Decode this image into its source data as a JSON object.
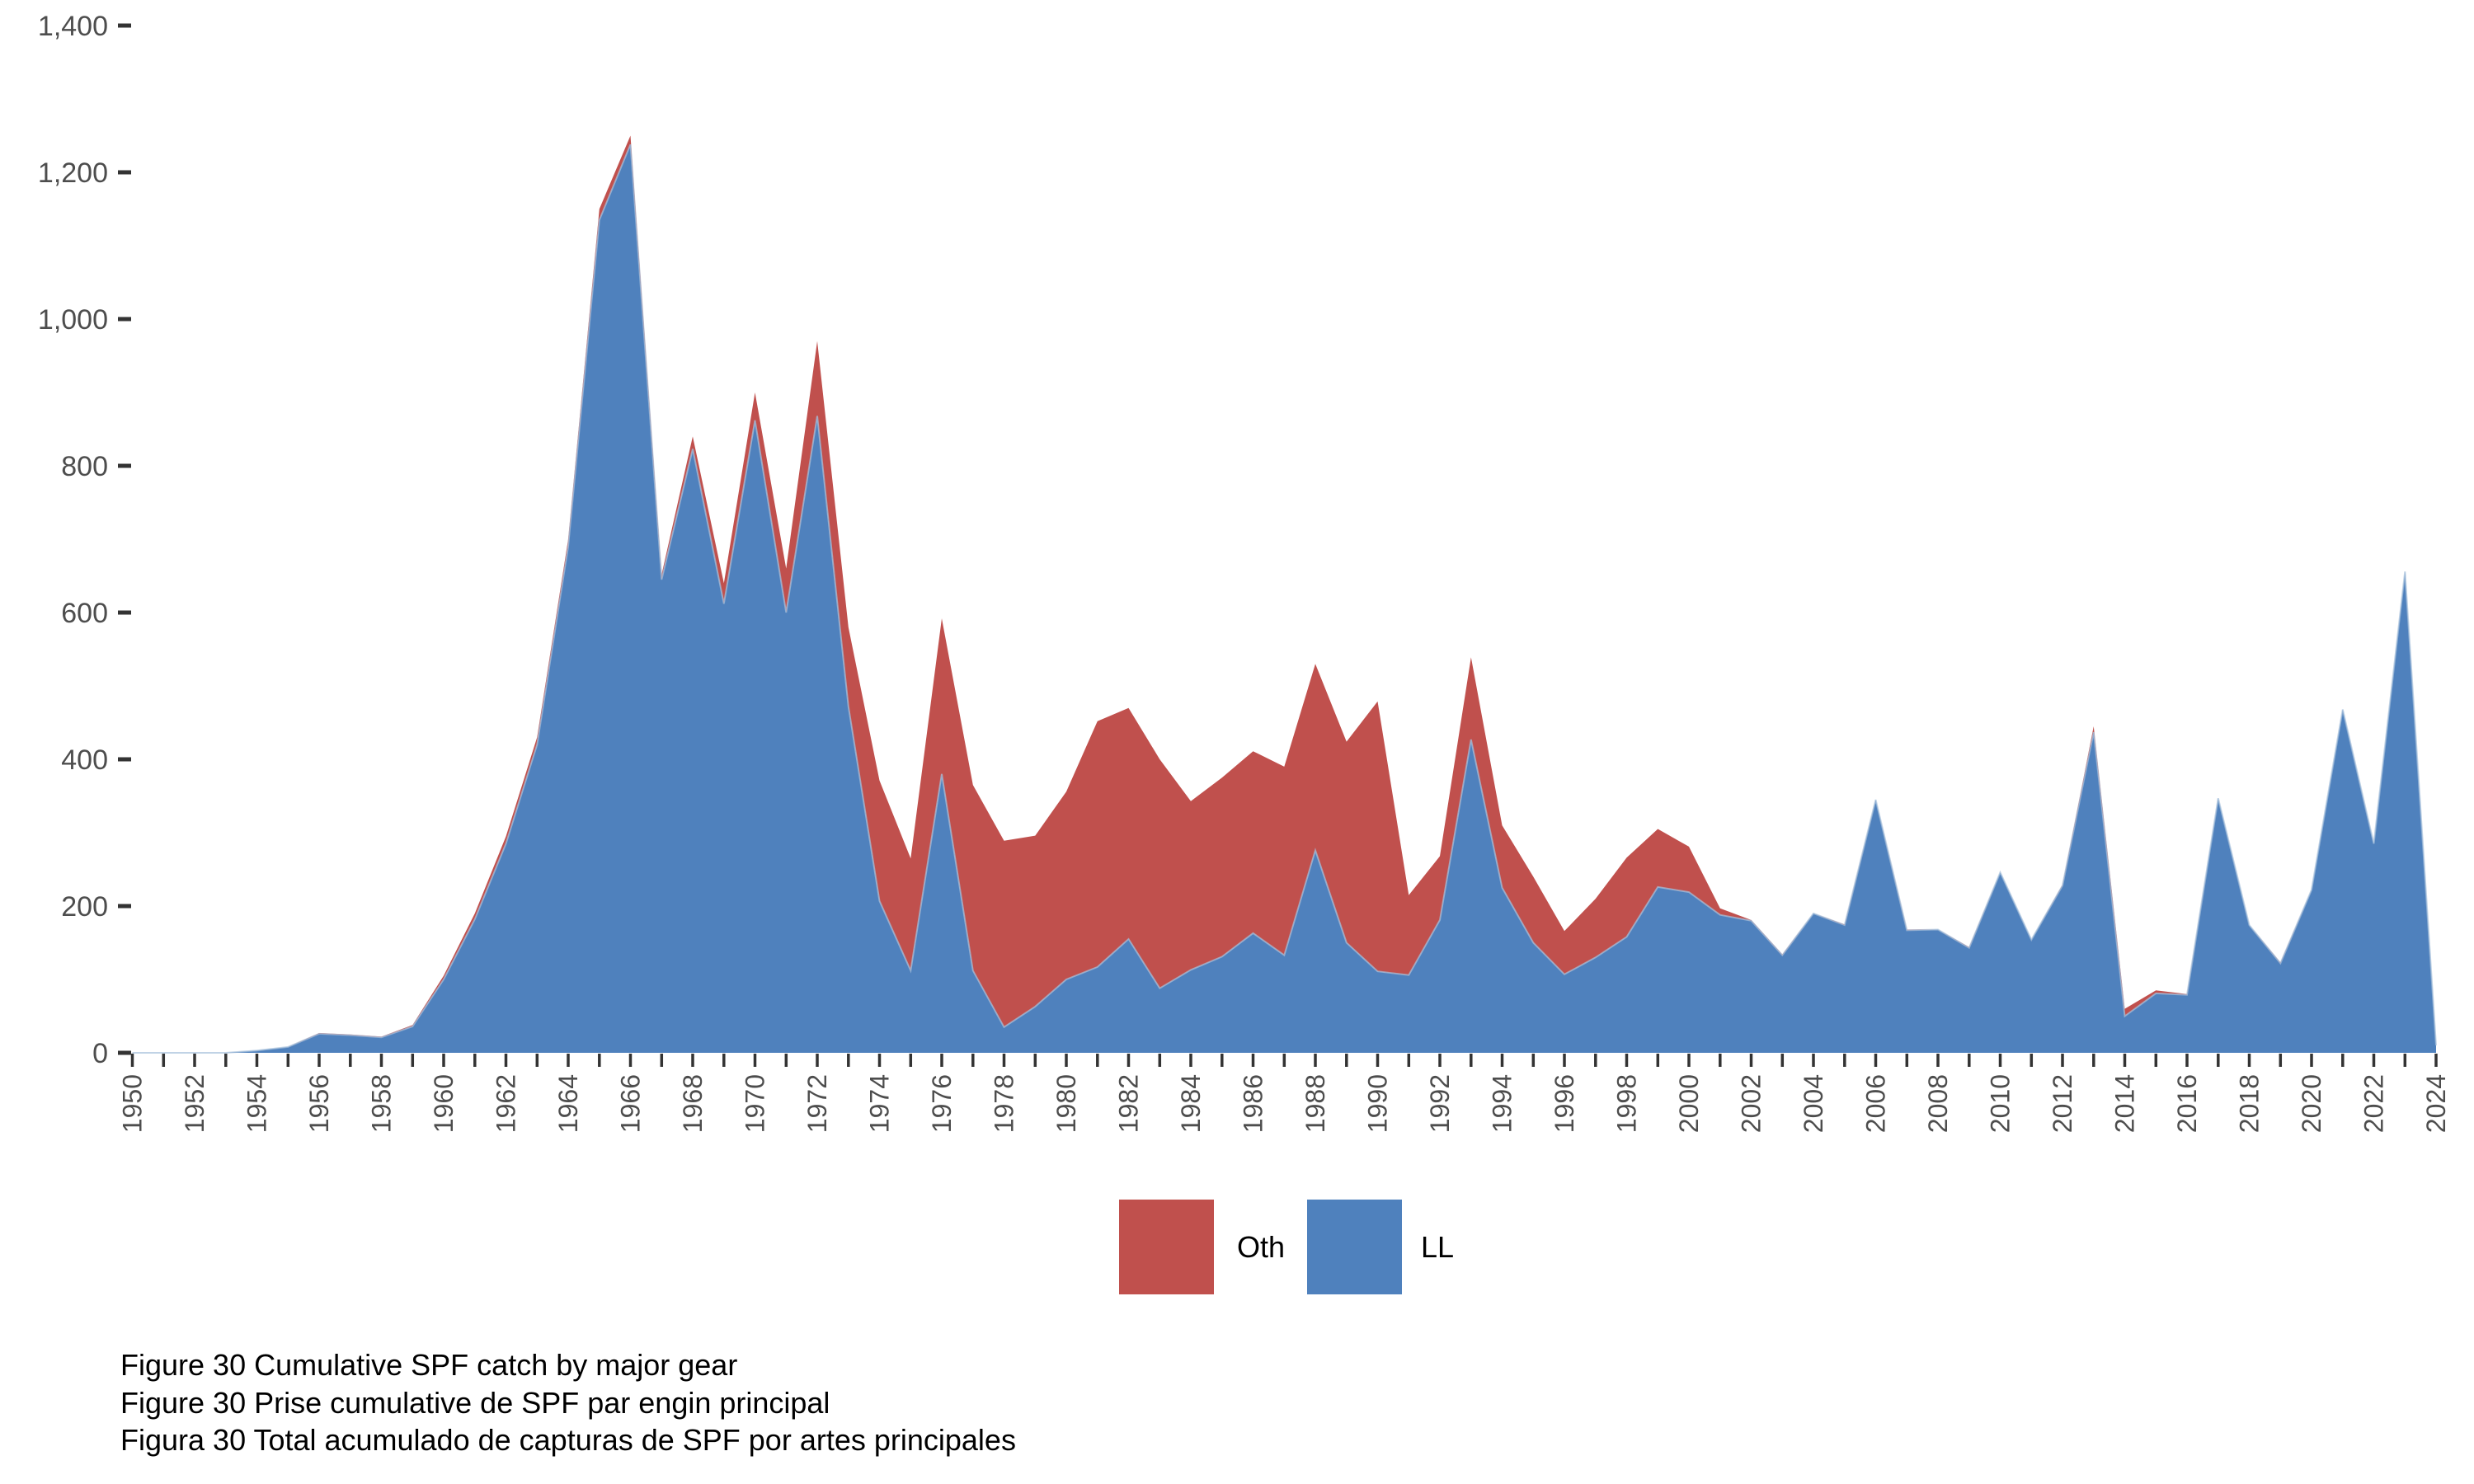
{
  "figure": {
    "captions": [
      "Figure 30 Cumulative SPF catch by major gear",
      "Figure 30 Prise cumulative de SPF par engin principal",
      "Figura 30 Total acumulado de capturas de SPF por artes principales"
    ]
  },
  "legend": {
    "items": [
      {
        "label": "Oth",
        "color": "#c0504d"
      },
      {
        "label": "LL",
        "color": "#4f81bd"
      }
    ]
  },
  "chart_data": {
    "type": "area",
    "stacked": true,
    "stack_order": [
      "LL",
      "Oth"
    ],
    "title": "",
    "xlabel": "",
    "ylabel": "",
    "x_range": [
      1950,
      2024
    ],
    "y_range": [
      0,
      1400
    ],
    "grid": false,
    "legend_position": "bottom",
    "x": [
      1950,
      1951,
      1952,
      1953,
      1954,
      1955,
      1956,
      1957,
      1958,
      1959,
      1960,
      1961,
      1962,
      1963,
      1964,
      1965,
      1966,
      1967,
      1968,
      1969,
      1970,
      1971,
      1972,
      1973,
      1974,
      1975,
      1976,
      1977,
      1978,
      1979,
      1980,
      1981,
      1982,
      1983,
      1984,
      1985,
      1986,
      1987,
      1988,
      1989,
      1990,
      1991,
      1992,
      1993,
      1994,
      1995,
      1996,
      1997,
      1998,
      1999,
      2000,
      2001,
      2002,
      2003,
      2004,
      2005,
      2006,
      2007,
      2008,
      2009,
      2010,
      2011,
      2012,
      2013,
      2014,
      2015,
      2016,
      2017,
      2018,
      2019,
      2020,
      2021,
      2022,
      2023,
      2024
    ],
    "series": [
      {
        "name": "Oth",
        "color": "#c0504d",
        "values": [
          0,
          0,
          0,
          0,
          0,
          0,
          1,
          1,
          1,
          2,
          5,
          8,
          10,
          10,
          10,
          15,
          12,
          7,
          17,
          28,
          38,
          60,
          102,
          108,
          164,
          153,
          212,
          253,
          254,
          233,
          256,
          335,
          315,
          312,
          230,
          244,
          248,
          257,
          254,
          274,
          368,
          109,
          87,
          112,
          85,
          90,
          59,
          80,
          108,
          79,
          62,
          9,
          1,
          1,
          0,
          1,
          0,
          1,
          0,
          1,
          0,
          0,
          1,
          8,
          10,
          4,
          1,
          0,
          0,
          1,
          0,
          0,
          0,
          0,
          0
        ]
      },
      {
        "name": "LL",
        "color": "#4f81bd",
        "values": [
          0,
          0,
          0,
          0,
          3,
          8,
          26,
          24,
          21,
          36,
          100,
          182,
          285,
          420,
          690,
          1135,
          1238,
          645,
          823,
          612,
          862,
          600,
          868,
          472,
          207,
          112,
          380,
          112,
          35,
          63,
          100,
          117,
          155,
          88,
          113,
          131,
          163,
          133,
          276,
          150,
          111,
          106,
          181,
          427,
          225,
          150,
          107,
          130,
          158,
          226,
          219,
          188,
          180,
          133,
          190,
          174,
          345,
          167,
          168,
          143,
          246,
          154,
          228,
          437,
          50,
          81,
          79,
          347,
          174,
          122,
          222,
          468,
          285,
          656,
          10
        ]
      }
    ],
    "x_tick_years": [
      1950,
      1952,
      1954,
      1956,
      1958,
      1960,
      1962,
      1964,
      1966,
      1968,
      1970,
      1972,
      1974,
      1976,
      1978,
      1980,
      1982,
      1984,
      1986,
      1988,
      1990,
      1992,
      1994,
      1996,
      1998,
      2000,
      2002,
      2004,
      2006,
      2008,
      2010,
      2012,
      2014,
      2016,
      2018,
      2020,
      2022,
      2024
    ],
    "x_tick_labels": [
      "1950",
      "1952",
      "1954",
      "1956",
      "1958",
      "1960",
      "1962",
      "1964",
      "1966",
      "1968",
      "1970",
      "1972",
      "1974",
      "1976",
      "1978",
      "1980",
      "1982",
      "1984",
      "1986",
      "1988",
      "1990",
      "1992",
      "1994",
      "1996",
      "1998",
      "2000",
      "2002",
      "2004",
      "2006",
      "2008",
      "2010",
      "2012",
      "2014",
      "2016",
      "2018",
      "2020",
      "2022",
      "2024"
    ],
    "y_tick_values": [
      0,
      200,
      400,
      600,
      800,
      1000,
      1200,
      1400
    ],
    "y_tick_labels": [
      "0",
      "200",
      "400",
      "600",
      "800",
      "1,000",
      "1,200",
      "1,400"
    ],
    "axis_color": "#333333",
    "label_color": "#4d4d4d",
    "blue_edge_color": "#a6c0dc"
  }
}
